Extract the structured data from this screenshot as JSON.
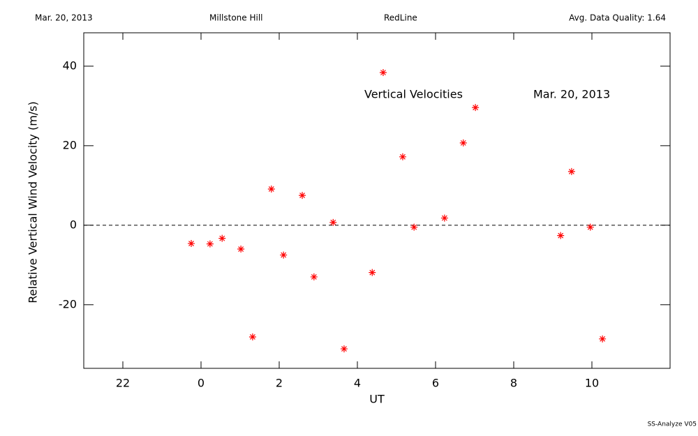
{
  "chart_data": {
    "type": "scatter",
    "header": [
      "Mar. 20, 2013",
      "Millstone Hill",
      "RedLine",
      "Avg. Data Quality: 1.64"
    ],
    "annotations": [
      "Vertical Velocities",
      "Mar. 20, 2013"
    ],
    "footer": "SS-Analyze V05",
    "xlabel": "UT",
    "ylabel": "Relative Vertical Wind Velocity (m/s)",
    "xlim": [
      -3,
      12
    ],
    "ylim": [
      -36,
      48.4
    ],
    "xticks": [
      {
        "value": -2,
        "label": "22"
      },
      0,
      2,
      4,
      6,
      8,
      10
    ],
    "yticks": [
      -20,
      0,
      20,
      40
    ],
    "hline": 0,
    "color": "#ff0000",
    "x": [
      -0.25,
      0.23,
      0.54,
      1.02,
      1.32,
      1.8,
      2.11,
      2.59,
      2.89,
      3.38,
      3.66,
      4.38,
      4.66,
      5.16,
      5.45,
      6.23,
      6.71,
      7.02,
      9.2,
      9.48,
      9.96,
      10.27
    ],
    "values": [
      -4.6,
      -4.7,
      -3.3,
      -6.0,
      -28.1,
      9.1,
      -7.5,
      7.5,
      -13.0,
      0.7,
      -31.1,
      -11.9,
      38.4,
      17.2,
      -0.5,
      1.8,
      20.7,
      29.6,
      -2.6,
      13.5,
      -0.5,
      -28.6
    ]
  }
}
